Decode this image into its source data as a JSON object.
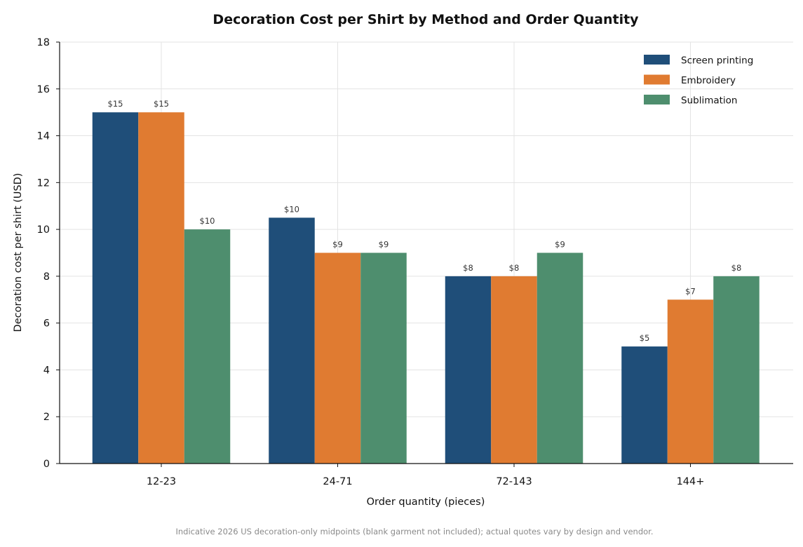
{
  "chart_data": {
    "type": "bar",
    "title": "Decoration Cost per Shirt by Method and Order Quantity",
    "xlabel": "Order quantity (pieces)",
    "ylabel": "Decoration cost per shirt (USD)",
    "ylim": [
      0,
      18
    ],
    "yticks": [
      "0",
      "2",
      "4",
      "6",
      "8",
      "10",
      "12",
      "14",
      "16",
      "18"
    ],
    "ytick_values": [
      0,
      2,
      4,
      6,
      8,
      10,
      12,
      14,
      16,
      18
    ],
    "categories": [
      "12-23",
      "24-71",
      "72-143",
      "144+"
    ],
    "series": [
      {
        "name": "Screen printing",
        "color": "#1f4e79",
        "values": [
          15,
          10.5,
          8,
          5
        ],
        "labels": [
          "$15",
          "$10",
          "$8",
          "$5"
        ]
      },
      {
        "name": "Embroidery",
        "color": "#e07b31",
        "values": [
          15,
          9,
          8,
          7
        ],
        "labels": [
          "$15",
          "$9",
          "$8",
          "$7"
        ]
      },
      {
        "name": "Sublimation",
        "color": "#4e8e6e",
        "values": [
          10,
          9,
          9,
          8
        ],
        "labels": [
          "$10",
          "$9",
          "$9",
          "$8"
        ]
      }
    ],
    "grid": true,
    "legend_position": "top-right",
    "footnote": "Indicative 2026 US decoration-only midpoints (blank garment not included); actual quotes vary by design and vendor."
  }
}
